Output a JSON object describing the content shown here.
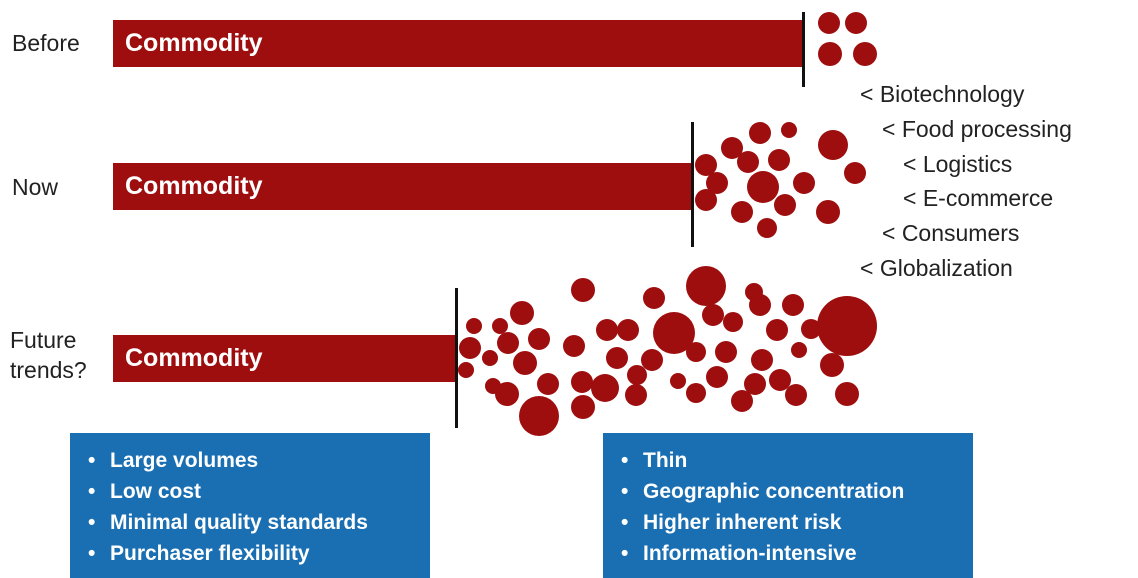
{
  "rows": [
    {
      "label": "Before",
      "bar_label": "Commodity"
    },
    {
      "label": "Now",
      "bar_label": "Commodity"
    },
    {
      "label": "Future\ntrends?",
      "bar_label": "Commodity"
    }
  ],
  "drivers": [
    "< Biotechnology",
    "< Food processing",
    "< Logistics",
    "< E-commerce",
    "< Consumers",
    "< Globalization"
  ],
  "commodity_traits": {
    "bullet": "•",
    "items": [
      "Large volumes",
      "Low cost",
      "Minimal quality standards",
      "Purchaser flexibility"
    ]
  },
  "differentiated_traits": {
    "bullet": "•",
    "items": [
      "Thin",
      "Geographic concentration",
      "Higher inherent risk",
      "Information-intensive"
    ]
  },
  "colors": {
    "bar": "#9e0e0e",
    "blob": "#9e0e0e",
    "box": "#1a6fb3",
    "divider": "#111111"
  }
}
